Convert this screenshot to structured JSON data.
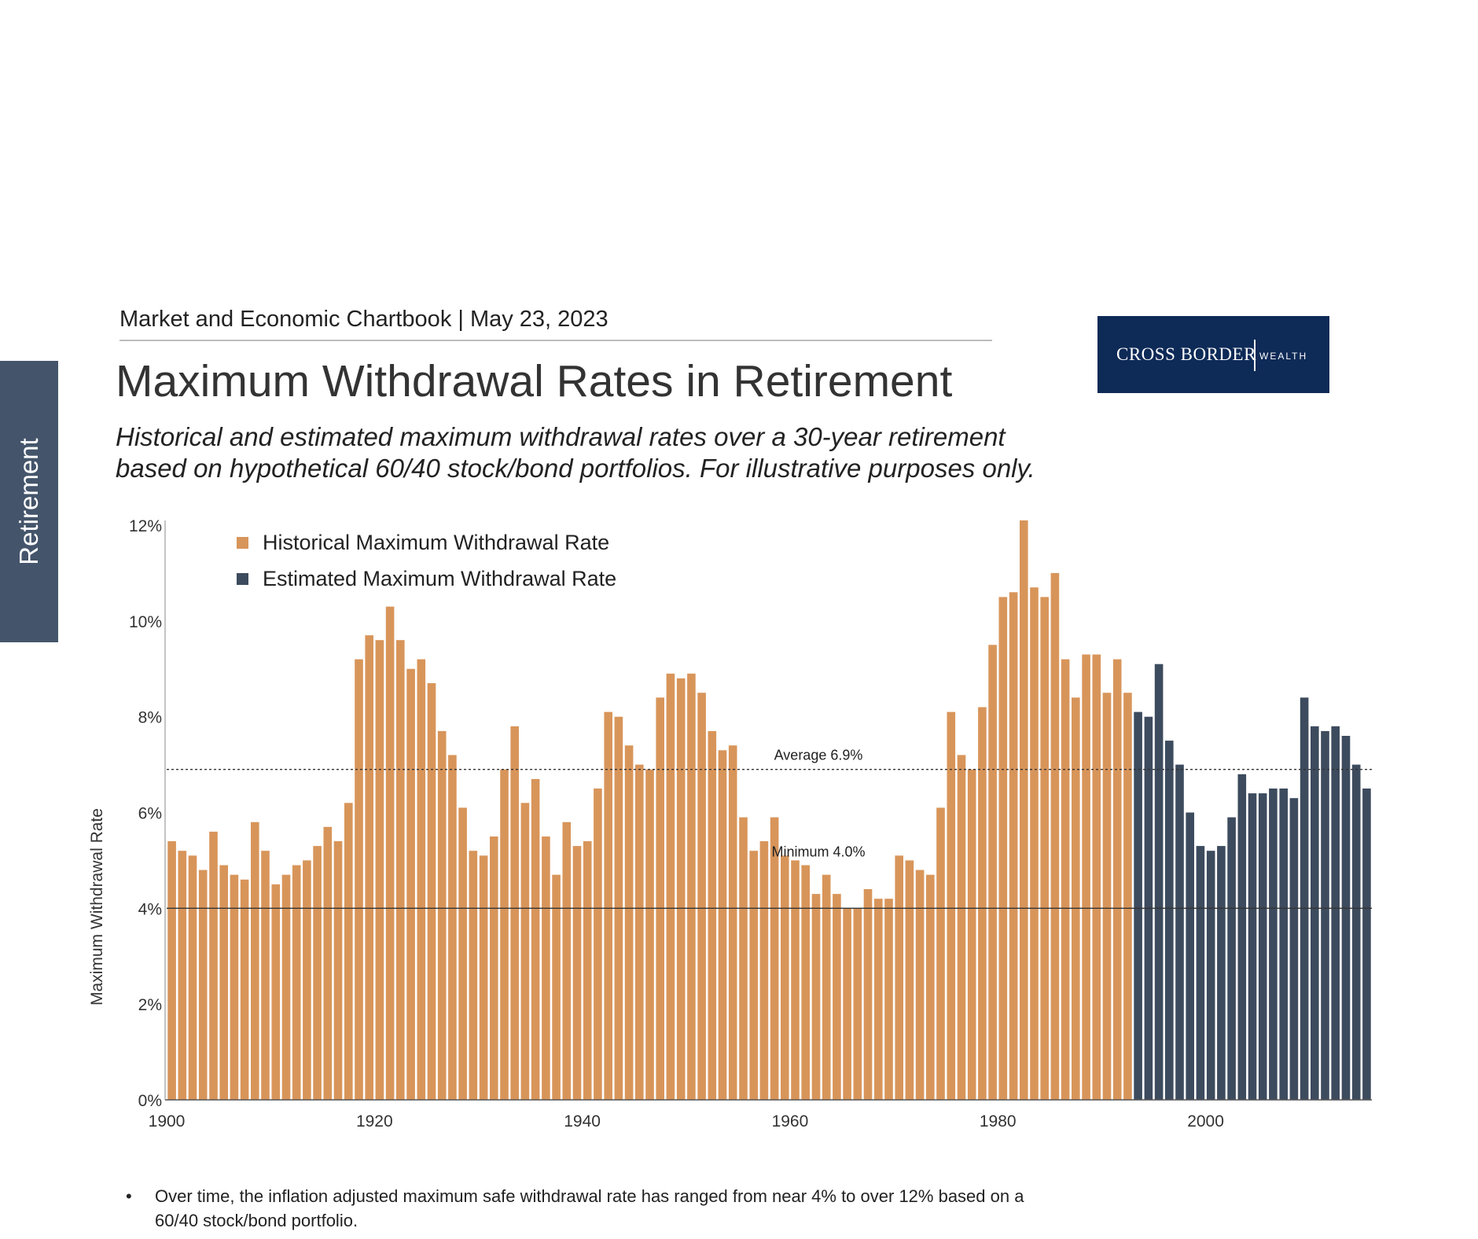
{
  "header": {
    "line": "Market and Economic Chartbook | May 23, 2023"
  },
  "side_tab": {
    "label": "Retirement"
  },
  "logo": {
    "brand": "CROSS BORDER",
    "sub": "WEALTH",
    "color": "#0e2a57"
  },
  "title": "Maximum Withdrawal Rates in Retirement",
  "subtitle": {
    "line1": "Historical and estimated maximum withdrawal rates over a 30-year retirement",
    "line2": "based on hypothetical 60/40 stock/bond portfolios. For illustrative purposes only."
  },
  "chart_data": {
    "type": "bar",
    "title": "",
    "xlabel": "",
    "ylabel": "Maximum Withdrawal Rate",
    "ylim": [
      0,
      12
    ],
    "yticks": [
      0,
      2,
      4,
      6,
      8,
      10,
      12
    ],
    "ytick_labels": [
      "0%",
      "2%",
      "4%",
      "6%",
      "8%",
      "10%",
      "12%"
    ],
    "xticks": [
      1900,
      1920,
      1940,
      1960,
      1980,
      2000
    ],
    "legend_position": "top-left",
    "grid": false,
    "colors": {
      "historical": "#d8955a",
      "estimated": "#3d4b5e"
    },
    "series": [
      {
        "name": "Historical Maximum Withdrawal Rate",
        "start_year": 1900,
        "values": [
          5.4,
          5.2,
          5.1,
          4.8,
          5.6,
          4.9,
          4.7,
          4.6,
          5.8,
          5.2,
          4.5,
          4.7,
          4.9,
          5.0,
          5.3,
          5.7,
          5.4,
          6.2,
          9.2,
          9.7,
          9.6,
          10.3,
          9.6,
          9.0,
          9.2,
          8.7,
          7.7,
          7.2,
          6.1,
          5.2,
          5.1,
          5.5,
          6.9,
          7.8,
          6.2,
          6.7,
          5.5,
          4.7,
          5.8,
          5.3,
          5.4,
          6.5,
          8.1,
          8.0,
          7.4,
          7.0,
          6.9,
          8.4,
          8.9,
          8.8,
          8.9,
          8.5,
          7.7,
          7.3,
          7.4,
          5.9,
          5.2,
          5.4,
          5.9,
          5.1,
          5.0,
          4.9,
          4.3,
          4.7,
          4.3,
          4.0,
          4.0,
          4.4,
          4.2,
          4.2,
          5.1,
          5.0,
          4.8,
          4.7,
          6.1,
          8.1,
          7.2,
          6.9,
          8.2,
          9.5,
          10.5,
          10.6,
          12.1,
          10.7,
          10.5,
          11.0,
          9.2,
          8.4,
          9.3,
          9.3,
          8.5,
          9.2,
          8.5
        ]
      },
      {
        "name": "Estimated Maximum Withdrawal Rate",
        "start_year": 1993,
        "values": [
          8.1,
          8.0,
          9.1,
          7.5,
          7.0,
          6.0,
          5.3,
          5.2,
          5.3,
          5.9,
          6.8,
          6.4,
          6.4,
          6.5,
          6.5,
          6.3,
          8.4,
          7.8,
          7.7,
          7.8,
          7.6,
          7.0,
          6.5
        ]
      }
    ],
    "reference_lines": [
      {
        "label": "Average 6.9%",
        "value": 6.9,
        "style": "dotted",
        "label_year": 1965
      },
      {
        "label": "Minimum 4.0%",
        "value": 4.0,
        "style": "solid",
        "label_year": 1965
      }
    ]
  },
  "notes": [
    {
      "bullet": "•",
      "text": "Over time, the inflation adjusted  maximum safe withdrawal rate has ranged from near 4% to over 12% based on a 60/40 stock/bond portfolio."
    }
  ]
}
